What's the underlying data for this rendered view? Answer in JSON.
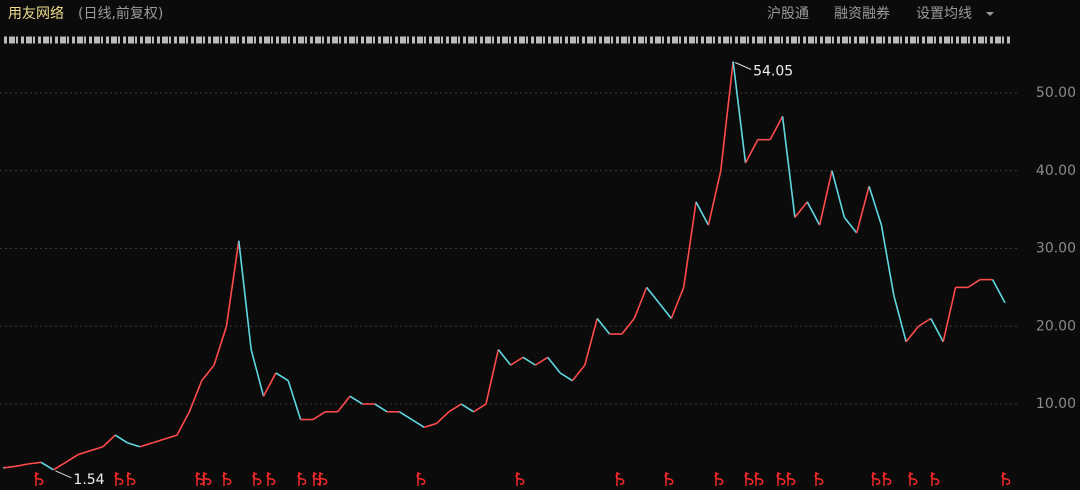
{
  "header": {
    "title": "用友网络",
    "subtitle": "(日线,前复权)",
    "menu": [
      "沪股通",
      "融资融券",
      "设置均线"
    ]
  },
  "chart_data": {
    "type": "line",
    "color": "#5fd8e2",
    "up_color": "#ff4b4b",
    "values": [
      1.8,
      2.0,
      2.3,
      2.5,
      1.54,
      2.5,
      3.5,
      4,
      4.5,
      6,
      5,
      4.5,
      5,
      5.5,
      6,
      9,
      13,
      15,
      20,
      31,
      17,
      11,
      14,
      13,
      8,
      8,
      9,
      9,
      11,
      10,
      10,
      9,
      9,
      8,
      7,
      7.5,
      9,
      10,
      9,
      10,
      17,
      15,
      16,
      15,
      16,
      14,
      13,
      15,
      21,
      19,
      19,
      21,
      25,
      23,
      21,
      25,
      36,
      33,
      40,
      54.05,
      41,
      44,
      44,
      47,
      34,
      36,
      33,
      40,
      34,
      32,
      38,
      33,
      24,
      18,
      20,
      21,
      18,
      25,
      25,
      26,
      26,
      23
    ],
    "annotations": [
      54.05,
      1.54
    ],
    "ylim": [
      0.87,
      55.53
    ],
    "yticks": [
      {
        "value": 10,
        "label": "10.00"
      },
      {
        "value": 20,
        "label": "20.00"
      },
      {
        "value": 30,
        "label": "30.00"
      },
      {
        "value": 40,
        "label": "40.00"
      },
      {
        "value": 50,
        "label": "50.00"
      }
    ],
    "grid": true
  }
}
